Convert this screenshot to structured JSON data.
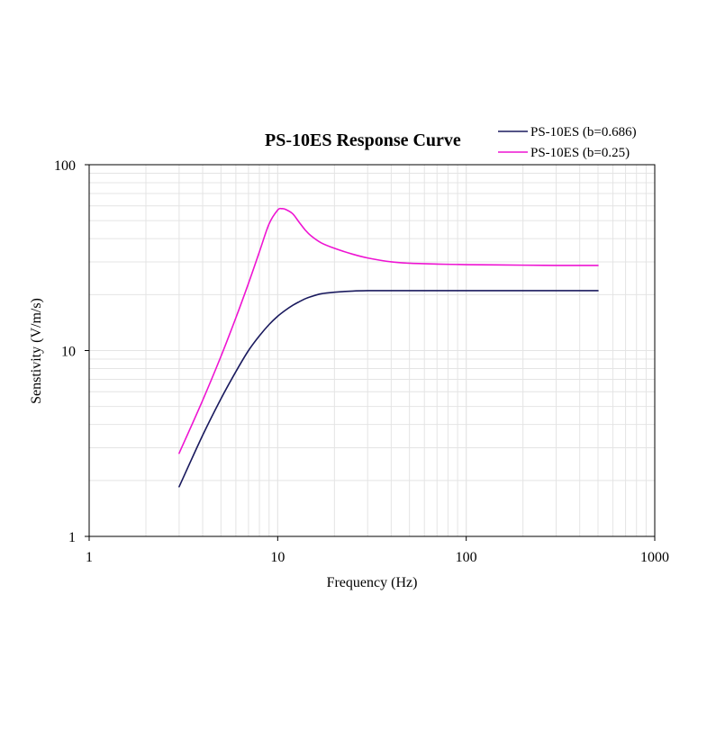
{
  "chart_data": {
    "type": "line",
    "title": "PS-10ES Response Curve",
    "xlabel": "Frequency (Hz)",
    "ylabel": "Senstivity  (V/m/s)",
    "x_scale": "log",
    "y_scale": "log",
    "xlim": [
      1,
      1000
    ],
    "ylim": [
      1,
      100
    ],
    "x_ticks": [
      1,
      10,
      100,
      1000
    ],
    "x_tick_labels": [
      "1",
      "10",
      "100",
      "1000"
    ],
    "y_ticks": [
      1,
      10,
      100
    ],
    "y_tick_labels": [
      "1",
      "10",
      "100"
    ],
    "grid": true,
    "legend_position": "top-right",
    "series": [
      {
        "name": "PS-10ES (b=0.686)",
        "color": "#1a1a5e",
        "x": [
          3,
          4,
          5,
          6,
          7,
          8,
          9,
          10,
          11,
          12,
          13,
          14,
          15,
          17,
          20,
          25,
          30,
          40,
          50,
          70,
          100,
          200,
          300,
          500
        ],
        "y": [
          1.85,
          3.5,
          5.5,
          7.7,
          10,
          12,
          13.8,
          15.3,
          16.5,
          17.5,
          18.3,
          19.0,
          19.5,
          20.2,
          20.6,
          20.9,
          21.0,
          21.0,
          21.0,
          21.0,
          21.0,
          21.0,
          21.0,
          21.0
        ]
      },
      {
        "name": "PS-10ES (b=0.25)",
        "color": "#ee14d2",
        "x": [
          3,
          4,
          5,
          6,
          7,
          8,
          9,
          10,
          10.5,
          11,
          12,
          13,
          14,
          15,
          17,
          20,
          25,
          30,
          40,
          50,
          70,
          100,
          200,
          300,
          500
        ],
        "y": [
          2.8,
          5.4,
          9.3,
          15.0,
          23.0,
          34.0,
          48.0,
          57.0,
          58.0,
          57.5,
          54.5,
          49.0,
          44.5,
          41.5,
          38.0,
          35.5,
          33.0,
          31.5,
          30.0,
          29.5,
          29.2,
          29.0,
          28.8,
          28.7,
          28.7
        ]
      }
    ]
  }
}
